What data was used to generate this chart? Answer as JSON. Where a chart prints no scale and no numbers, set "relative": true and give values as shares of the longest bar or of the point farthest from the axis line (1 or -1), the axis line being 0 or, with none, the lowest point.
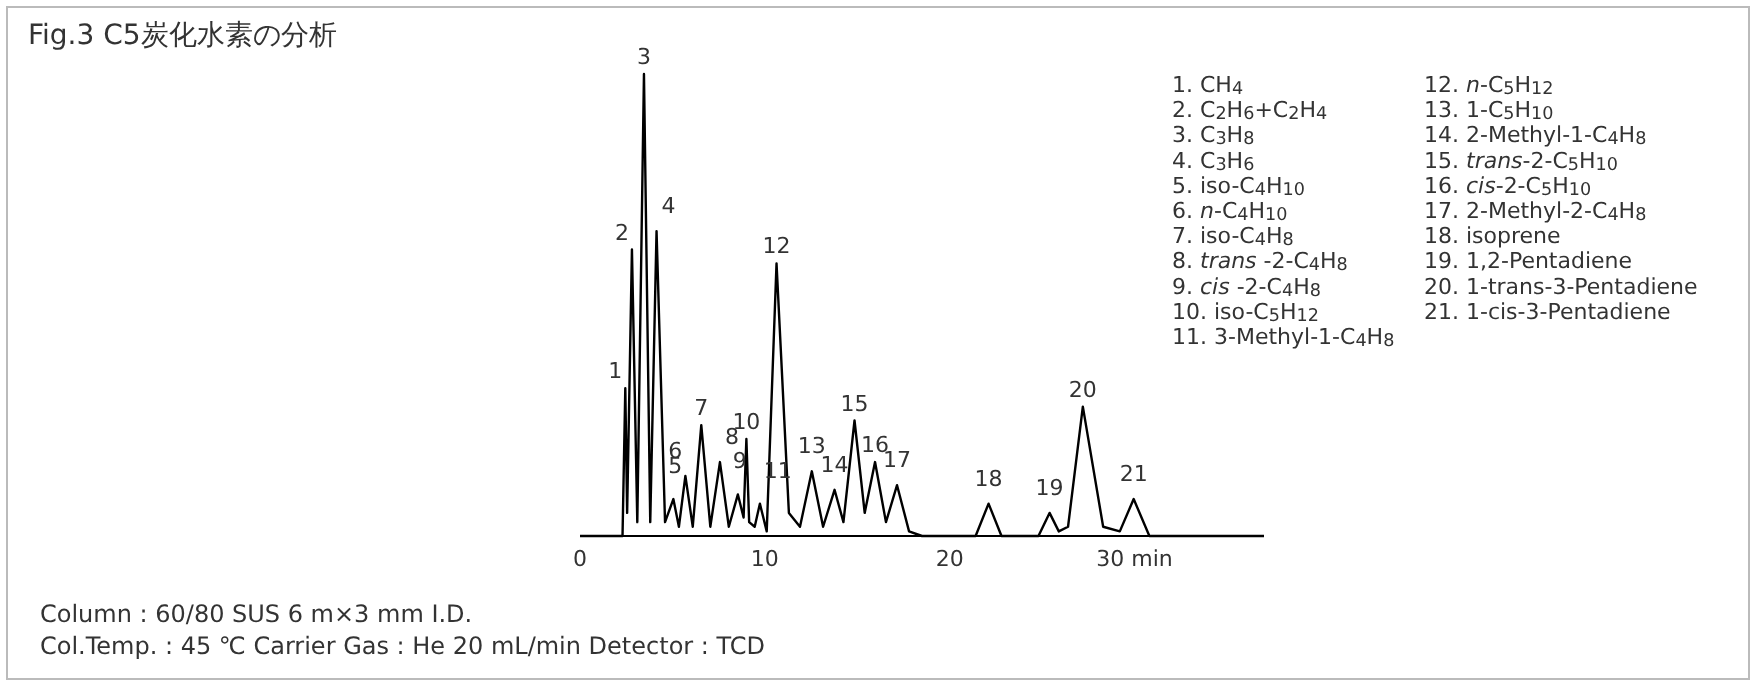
{
  "chart_data": {
    "type": "line",
    "title": "Fig.3  C5炭化水素の分析",
    "relative": true,
    "color": "#000000",
    "grid": false,
    "legend": false,
    "marker": "none",
    "line_style": "solid",
    "xlim": [
      0,
      37
    ],
    "xticks": [
      0,
      10,
      20,
      {
        "value": 30,
        "label": "30 min"
      }
    ],
    "x": [
      0,
      2.3,
      2.45,
      2.55,
      2.81,
      3.1,
      3.46,
      3.8,
      4.14,
      4.6,
      5.05,
      5.35,
      5.7,
      6.1,
      6.56,
      7.05,
      7.57,
      8.05,
      8.54,
      8.85,
      9.0,
      9.15,
      9.45,
      9.73,
      10.1,
      10.63,
      11.3,
      11.9,
      12.54,
      13.15,
      13.77,
      14.25,
      14.85,
      15.4,
      15.96,
      16.55,
      17.15,
      17.8,
      18.5,
      21.4,
      22.1,
      22.8,
      24.8,
      25.4,
      25.9,
      26.4,
      27.2,
      28.3,
      29.2,
      29.95,
      30.8,
      37
    ],
    "values": [
      0,
      0,
      0.32,
      0.05,
      0.62,
      0.03,
      1,
      0.03,
      0.66,
      0.03,
      0.08,
      0.02,
      0.13,
      0.02,
      0.24,
      0.02,
      0.16,
      0.02,
      0.09,
      0.04,
      0.21,
      0.03,
      0.02,
      0.07,
      0.01,
      0.59,
      0.05,
      0.02,
      0.14,
      0.02,
      0.1,
      0.03,
      0.25,
      0.05,
      0.16,
      0.03,
      0.11,
      0.01,
      0,
      0,
      0.07,
      0,
      0,
      0.05,
      0.01,
      0.02,
      0.28,
      0.02,
      0.01,
      0.08,
      0,
      0
    ],
    "annotations": [
      {
        "text": "1",
        "x": 2.45,
        "y": 0.32
      },
      {
        "text": "2",
        "x": 2.81,
        "y": 0.62
      },
      {
        "text": "3",
        "x": 3.46,
        "y": 1
      },
      {
        "text": "4",
        "x": 4.14,
        "y": 0.66
      },
      {
        "text": "5",
        "x": 5.05,
        "y": 0.08
      },
      {
        "text": "6",
        "x": 5.7,
        "y": 0.13
      },
      {
        "text": "7",
        "x": 6.56,
        "y": 0.24
      },
      {
        "text": "8",
        "x": 7.57,
        "y": 0.16
      },
      {
        "text": "9",
        "x": 8.54,
        "y": 0.09
      },
      {
        "text": "10",
        "x": 9.0,
        "y": 0.21
      },
      {
        "text": "11",
        "x": 9.73,
        "y": 0.07
      },
      {
        "text": "12",
        "x": 10.63,
        "y": 0.59
      },
      {
        "text": "13",
        "x": 12.54,
        "y": 0.14
      },
      {
        "text": "14",
        "x": 13.77,
        "y": 0.1
      },
      {
        "text": "15",
        "x": 14.85,
        "y": 0.25
      },
      {
        "text": "16",
        "x": 15.96,
        "y": 0.16
      },
      {
        "text": "17",
        "x": 17.15,
        "y": 0.11
      },
      {
        "text": "18",
        "x": 22.1,
        "y": 0.07
      },
      {
        "text": "19",
        "x": 25.4,
        "y": 0.05
      },
      {
        "text": "20",
        "x": 27.2,
        "y": 0.28
      },
      {
        "text": "21",
        "x": 29.95,
        "y": 0.08
      },
      "1. CH$_{4}$",
      "2. C$_{2}$H$_{6}$+C$_{2}$H$_{4}$",
      "3. C$_{3}$H$_{8}$",
      "4. C$_{3}$H$_{6}$",
      "5. iso-C$_{4}$H$_{10}$",
      "6. *n*-C$_{4}$H$_{10}$",
      "7. iso-C$_{4}$H$_{8}$",
      "8. *trans* -2-C$_{4}$H$_{8}$",
      "9. *cis* -2-C$_{4}$H$_{8}$",
      "10. iso-C$_{5}$H$_{12}$",
      "11. 3-Methyl-1-C$_{4}$H$_{8}$",
      "12. *n*-C$_{5}$H$_{12}$",
      "13. 1-C$_{5}$H$_{10}$",
      "14. 2-Methyl-1-C$_{4}$H$_{8}$",
      "15. *trans*-2-C$_{5}$H$_{10}$",
      "16. *cis*-2-C$_{5}$H$_{10}$",
      "17. 2-Methyl-2-C$_{4}$H$_{8}$",
      "18. isoprene",
      "19. 1,2-Pentadiene",
      "20. 1-trans-3-Pentadiene",
      "21. 1-cis-3-Pentadiene",
      "Column : 60/80 SUS 6 m×3 mm I.D.",
      "Col.Temp. : 45 ℃   Carrier Gas : He 20 mL/min  Detector : TCD"
    ]
  }
}
